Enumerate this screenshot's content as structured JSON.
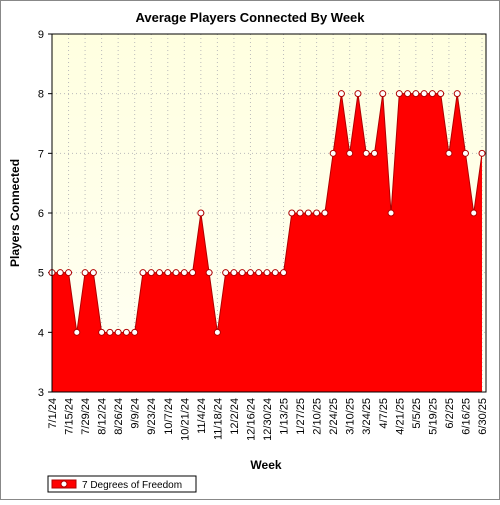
{
  "chart_data": {
    "type": "area",
    "title": "Average Players Connected By Week",
    "x_label": "Week",
    "y_label": "Players Connected",
    "categories": [
      "7/1/24",
      null,
      "7/15/24",
      null,
      "7/29/24",
      null,
      "8/12/24",
      null,
      "8/26/24",
      null,
      "9/9/24",
      null,
      "9/23/24",
      null,
      "10/7/24",
      null,
      "10/21/24",
      null,
      "11/4/24",
      null,
      "11/18/24",
      null,
      "12/2/24",
      null,
      "12/16/24",
      null,
      "12/30/24",
      null,
      "1/13/25",
      null,
      "1/27/25",
      null,
      "2/10/25",
      null,
      "2/24/25",
      null,
      "3/10/25",
      null,
      "3/24/25",
      null,
      "4/7/25",
      null,
      "4/21/25",
      null,
      "5/5/25",
      null,
      "5/19/25",
      null,
      "6/2/25",
      null,
      "6/16/25",
      null,
      "6/30/25"
    ],
    "series": [
      {
        "name": "7 Degrees of Freedom",
        "color": "#ff0000",
        "values": [
          5,
          5,
          5,
          4,
          5,
          5,
          4,
          4,
          4,
          4,
          4,
          5,
          5,
          5,
          5,
          5,
          5,
          5,
          6,
          5,
          4,
          5,
          5,
          5,
          5,
          5,
          5,
          5,
          5,
          6,
          6,
          6,
          6,
          6,
          7,
          8,
          7,
          8,
          7,
          7,
          8,
          6,
          8,
          8,
          8,
          8,
          8,
          8,
          7,
          8,
          7,
          6,
          7
        ]
      }
    ],
    "ylim": [
      3,
      9
    ],
    "yticks": [
      3,
      4,
      5,
      6,
      7,
      8,
      9
    ],
    "grid": true,
    "legend": "bottom-left"
  }
}
